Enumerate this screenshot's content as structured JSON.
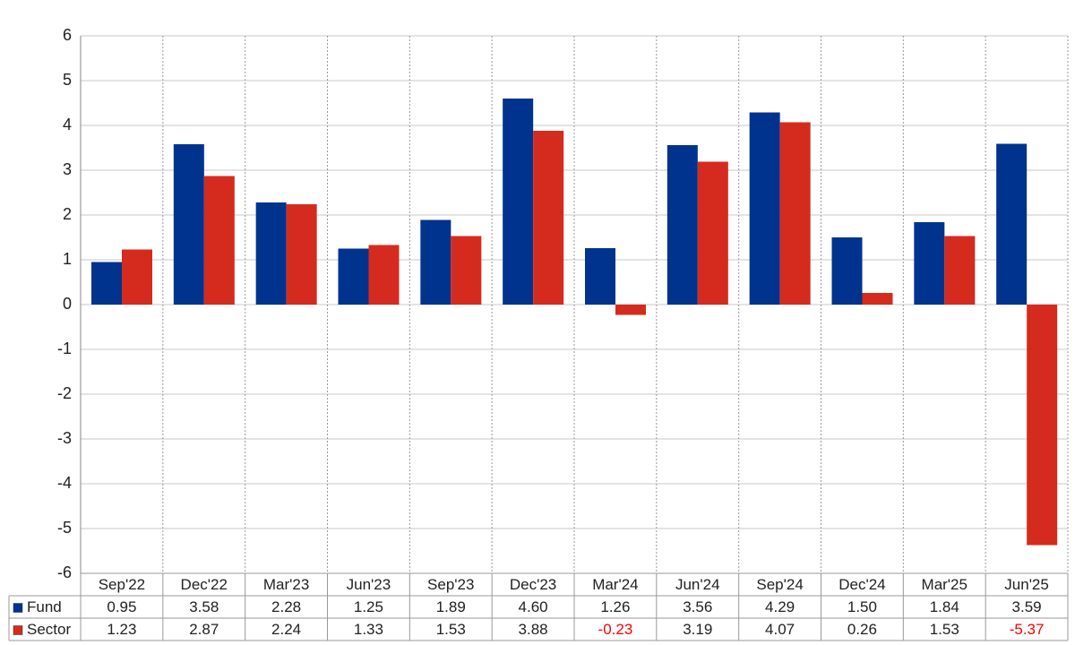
{
  "chart_data": {
    "type": "bar",
    "categories": [
      "Sep'22",
      "Dec'22",
      "Mar'23",
      "Jun'23",
      "Sep'23",
      "Dec'23",
      "Mar'24",
      "Jun'24",
      "Sep'24",
      "Dec'24",
      "Mar'25",
      "Jun'25"
    ],
    "series": [
      {
        "name": "Fund",
        "color": "#00338d",
        "values": [
          0.95,
          3.58,
          2.28,
          1.25,
          1.89,
          4.6,
          1.26,
          3.56,
          4.29,
          1.5,
          1.84,
          3.59
        ],
        "value_labels": [
          "0.95",
          "3.58",
          "2.28",
          "1.25",
          "1.89",
          "4.60",
          "1.26",
          "3.56",
          "4.29",
          "1.50",
          "1.84",
          "3.59"
        ]
      },
      {
        "name": "Sector",
        "color": "#d52b1e",
        "values": [
          1.23,
          2.87,
          2.24,
          1.33,
          1.53,
          3.88,
          -0.23,
          3.19,
          4.07,
          0.26,
          1.53,
          -5.37
        ],
        "value_labels": [
          "1.23",
          "2.87",
          "2.24",
          "1.33",
          "1.53",
          "3.88",
          "-0.23",
          "3.19",
          "4.07",
          "0.26",
          "1.53",
          "-5.37"
        ]
      }
    ],
    "ylim": [
      -6,
      6
    ],
    "yticks": [
      -6,
      -5,
      -4,
      -3,
      -2,
      -1,
      0,
      1,
      2,
      3,
      4,
      5,
      6
    ],
    "grid": true,
    "negative_label_color": "#ff0000"
  }
}
